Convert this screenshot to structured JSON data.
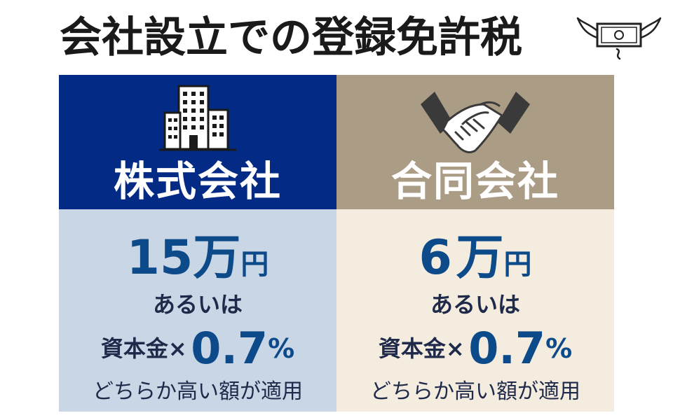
{
  "title": "会社設立での登録免許税",
  "icons": {
    "title_icon": "flying-money-icon",
    "left_head_icon": "office-building-icon",
    "right_head_icon": "handshake-icon"
  },
  "colors": {
    "left_header_bg": "#032b86",
    "left_body_bg": "#c9d6e5",
    "right_header_bg": "#ab9c86",
    "right_body_bg": "#f3ecdf",
    "amount_text": "#0d4a8a"
  },
  "columns": [
    {
      "label": "株式会社",
      "amount_number": "15",
      "amount_man": "万",
      "amount_yen": "円",
      "or_text": "あるいは",
      "basis": "資本金×",
      "rate": "0.7",
      "percent": "%",
      "note": "どちらか高い額が適用"
    },
    {
      "label": "合同会社",
      "amount_number": "6",
      "amount_man": "万",
      "amount_yen": "円",
      "or_text": "あるいは",
      "basis": "資本金×",
      "rate": "0.7",
      "percent": "%",
      "note": "どちらか高い額が適用"
    }
  ]
}
